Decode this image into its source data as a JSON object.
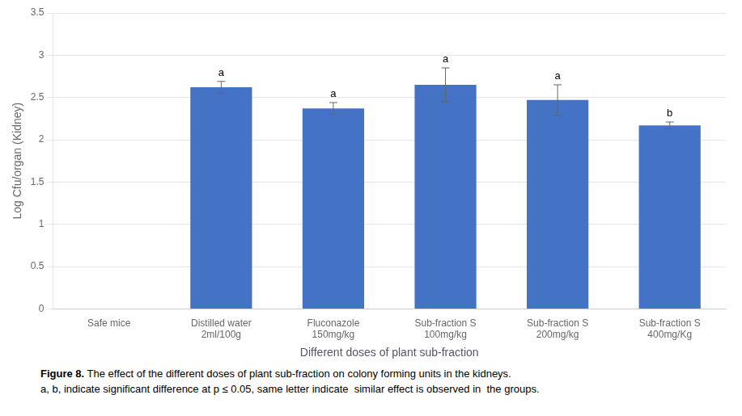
{
  "chart_data": {
    "type": "bar",
    "categories": [
      "Safe mice",
      "Distilled water\n2ml/100g",
      "Fluconazole\n150mg/kg",
      "Sub-fraction S\n100mg/kg",
      "Sub-fraction S\n200mg/kg",
      "Sub-fraction S\n400mg/Kg"
    ],
    "values": [
      0,
      2.62,
      2.37,
      2.65,
      2.47,
      2.17
    ],
    "errors": [
      0,
      0.07,
      0.07,
      0.2,
      0.18,
      0.04
    ],
    "annotations": [
      {
        "category": "Distilled water\n2ml/100g",
        "text": "a"
      },
      {
        "category": "Fluconazole\n150mg/kg",
        "text": "a"
      },
      {
        "category": "Sub-fraction S\n100mg/kg",
        "text": "a"
      },
      {
        "category": "Sub-fraction S\n200mg/kg",
        "text": "a"
      },
      {
        "category": "Sub-fraction S\n400mg/Kg",
        "text": "b"
      }
    ],
    "color": "#4472C4",
    "xlabel": "Different doses of plant sub-fraction",
    "ylabel": "Log Cfu/organ (Kidney)",
    "ylim": [
      0,
      3.5
    ],
    "yticks": [
      0,
      0.5,
      1,
      1.5,
      2,
      2.5,
      3,
      3.5
    ],
    "grid": true,
    "caption": [
      {
        "bold": "Figure 8.",
        "text": " The effect of the different doses of plant sub-fraction on colony forming units in the kidneys."
      },
      {
        "text": "a, b, indicate significant difference at p ≤ 0.05, same letter indicate  similar effect is observed in  the groups."
      }
    ]
  }
}
